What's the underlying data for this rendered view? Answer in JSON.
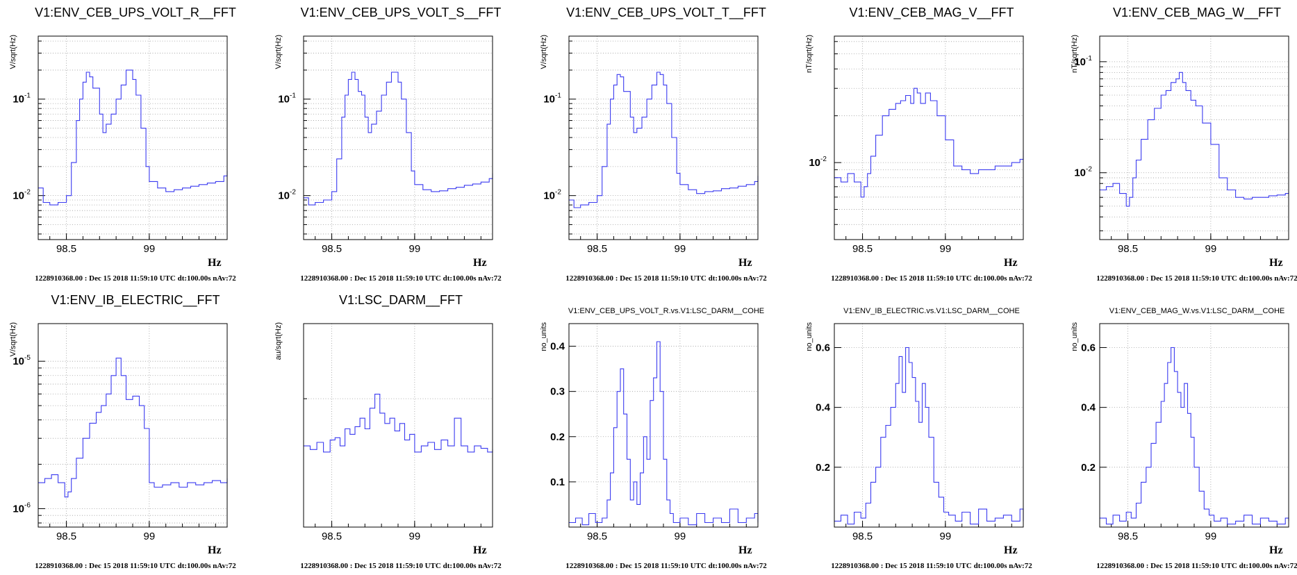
{
  "footer_text": "1228910368.00 : Dec 15 2018 11:59:10 UTC dt:100.00s nAv:72",
  "x_unit": "Hz",
  "colors": {
    "trace": "#3a3af0",
    "grid": "#9a9a9a",
    "frame": "#000000"
  },
  "chart_data": [
    {
      "type": "line",
      "title": "V1:ENV_CEB_UPS_VOLT_R__FFT",
      "ylabel": "V/sqrt(Hz)",
      "xlim": [
        98.33,
        99.47
      ],
      "ylim": [
        0.0035,
        0.45
      ],
      "log_y": true,
      "x_ticks": [
        98.5,
        99
      ],
      "y_tick_labels": [
        {
          "v": 0.1,
          "t": "10",
          "e": "-1"
        },
        {
          "v": 0.01,
          "t": "10",
          "e": "-2"
        }
      ],
      "x": [
        98.33,
        98.36,
        98.4,
        98.45,
        98.5,
        98.53,
        98.56,
        98.58,
        98.6,
        98.62,
        98.64,
        98.66,
        98.68,
        98.7,
        98.72,
        98.74,
        98.77,
        98.8,
        98.83,
        98.86,
        98.88,
        98.9,
        98.92,
        98.95,
        98.98,
        99.0,
        99.05,
        99.1,
        99.15,
        99.2,
        99.25,
        99.3,
        99.35,
        99.4,
        99.45,
        99.47
      ],
      "y": [
        0.012,
        0.0085,
        0.008,
        0.0085,
        0.01,
        0.022,
        0.06,
        0.1,
        0.15,
        0.19,
        0.17,
        0.13,
        0.13,
        0.07,
        0.045,
        0.055,
        0.07,
        0.1,
        0.14,
        0.2,
        0.2,
        0.16,
        0.11,
        0.05,
        0.02,
        0.014,
        0.012,
        0.011,
        0.0115,
        0.012,
        0.0125,
        0.013,
        0.0135,
        0.014,
        0.016,
        0.018
      ]
    },
    {
      "type": "line",
      "title": "V1:ENV_CEB_UPS_VOLT_S__FFT",
      "ylabel": "V/sqrt(Hz)",
      "xlim": [
        98.33,
        99.47
      ],
      "ylim": [
        0.0035,
        0.45
      ],
      "log_y": true,
      "x_ticks": [
        98.5,
        99
      ],
      "y_tick_labels": [
        {
          "v": 0.1,
          "t": "10",
          "e": "-1"
        },
        {
          "v": 0.01,
          "t": "10",
          "e": "-2"
        }
      ],
      "x": [
        98.33,
        98.36,
        98.4,
        98.45,
        98.5,
        98.53,
        98.56,
        98.58,
        98.6,
        98.62,
        98.64,
        98.66,
        98.68,
        98.7,
        98.72,
        98.74,
        98.77,
        98.8,
        98.83,
        98.86,
        98.88,
        98.9,
        98.92,
        98.95,
        98.98,
        99.0,
        99.05,
        99.1,
        99.15,
        99.2,
        99.25,
        99.3,
        99.35,
        99.4,
        99.45,
        99.47
      ],
      "y": [
        0.0095,
        0.008,
        0.0085,
        0.009,
        0.011,
        0.024,
        0.065,
        0.11,
        0.16,
        0.19,
        0.16,
        0.12,
        0.11,
        0.065,
        0.045,
        0.055,
        0.075,
        0.11,
        0.15,
        0.19,
        0.19,
        0.15,
        0.1,
        0.045,
        0.018,
        0.013,
        0.0115,
        0.011,
        0.0112,
        0.0118,
        0.0122,
        0.0128,
        0.0132,
        0.0138,
        0.015,
        0.017
      ]
    },
    {
      "type": "line",
      "title": "V1:ENV_CEB_UPS_VOLT_T__FFT",
      "ylabel": "V/sqrt(Hz)",
      "xlim": [
        98.33,
        99.47
      ],
      "ylim": [
        0.0035,
        0.45
      ],
      "log_y": true,
      "x_ticks": [
        98.5,
        99
      ],
      "y_tick_labels": [
        {
          "v": 0.1,
          "t": "10",
          "e": "-1"
        },
        {
          "v": 0.01,
          "t": "10",
          "e": "-2"
        }
      ],
      "x": [
        98.33,
        98.36,
        98.4,
        98.45,
        98.5,
        98.53,
        98.56,
        98.58,
        98.6,
        98.62,
        98.64,
        98.66,
        98.68,
        98.7,
        98.72,
        98.74,
        98.77,
        98.8,
        98.83,
        98.86,
        98.88,
        98.9,
        98.92,
        98.95,
        98.98,
        99.0,
        99.05,
        99.1,
        99.15,
        99.2,
        99.25,
        99.3,
        99.35,
        99.4,
        99.45,
        99.47
      ],
      "y": [
        0.009,
        0.0075,
        0.008,
        0.0085,
        0.01,
        0.02,
        0.055,
        0.1,
        0.14,
        0.18,
        0.17,
        0.12,
        0.12,
        0.065,
        0.045,
        0.05,
        0.065,
        0.1,
        0.14,
        0.19,
        0.18,
        0.14,
        0.09,
        0.04,
        0.017,
        0.013,
        0.0115,
        0.0105,
        0.011,
        0.0112,
        0.0118,
        0.012,
        0.0125,
        0.013,
        0.014,
        0.016
      ]
    },
    {
      "type": "line",
      "title": "V1:ENV_CEB_MAG_V__FFT",
      "ylabel": "nT/sqrt(Hz)",
      "xlim": [
        98.33,
        99.47
      ],
      "ylim": [
        0.0032,
        0.065
      ],
      "log_y": true,
      "x_ticks": [
        98.5,
        99
      ],
      "y_tick_labels": [
        {
          "v": 0.01,
          "t": "10",
          "e": "-2"
        }
      ],
      "x": [
        98.33,
        98.37,
        98.41,
        98.45,
        98.49,
        98.51,
        98.53,
        98.55,
        98.58,
        98.62,
        98.66,
        98.7,
        98.73,
        98.76,
        98.79,
        98.81,
        98.83,
        98.85,
        98.88,
        98.91,
        98.95,
        99.0,
        99.05,
        99.1,
        99.15,
        99.2,
        99.25,
        99.3,
        99.35,
        99.4,
        99.45,
        99.47
      ],
      "y": [
        0.008,
        0.0075,
        0.0085,
        0.0075,
        0.006,
        0.007,
        0.0085,
        0.011,
        0.015,
        0.02,
        0.022,
        0.024,
        0.025,
        0.027,
        0.024,
        0.03,
        0.028,
        0.024,
        0.028,
        0.025,
        0.02,
        0.014,
        0.0095,
        0.009,
        0.0085,
        0.009,
        0.009,
        0.0095,
        0.0095,
        0.01,
        0.0105,
        0.012
      ]
    },
    {
      "type": "line",
      "title": "V1:ENV_CEB_MAG_W__FFT",
      "ylabel": "nT/sqrt(Hz)",
      "xlim": [
        98.33,
        99.47
      ],
      "ylim": [
        0.0025,
        0.17
      ],
      "log_y": true,
      "x_ticks": [
        98.5,
        99
      ],
      "y_tick_labels": [
        {
          "v": 0.1,
          "t": "10",
          "e": "-1"
        },
        {
          "v": 0.01,
          "t": "10",
          "e": "-2"
        }
      ],
      "x": [
        98.33,
        98.37,
        98.41,
        98.45,
        98.49,
        98.51,
        98.53,
        98.55,
        98.58,
        98.62,
        98.66,
        98.7,
        98.73,
        98.76,
        98.79,
        98.81,
        98.83,
        98.85,
        98.88,
        98.91,
        98.95,
        99.0,
        99.05,
        99.1,
        99.15,
        99.2,
        99.25,
        99.3,
        99.35,
        99.4,
        99.45,
        99.47
      ],
      "y": [
        0.007,
        0.0075,
        0.008,
        0.0065,
        0.005,
        0.006,
        0.009,
        0.013,
        0.02,
        0.03,
        0.038,
        0.05,
        0.055,
        0.065,
        0.07,
        0.08,
        0.065,
        0.055,
        0.045,
        0.04,
        0.028,
        0.018,
        0.009,
        0.007,
        0.006,
        0.0058,
        0.006,
        0.006,
        0.0062,
        0.0063,
        0.0065,
        0.0068
      ]
    },
    {
      "type": "line",
      "title": "V1:ENV_IB_ELECTRIC__FFT",
      "ylabel": "V/sqrt(Hz)",
      "xlim": [
        98.33,
        99.47
      ],
      "ylim": [
        7.5e-07,
        1.8e-05
      ],
      "log_y": true,
      "x_ticks": [
        98.5,
        99
      ],
      "y_tick_labels": [
        {
          "v": 1e-05,
          "t": "10",
          "e": "-5"
        },
        {
          "v": 1e-06,
          "t": "10",
          "e": "-6"
        }
      ],
      "x": [
        98.33,
        98.37,
        98.41,
        98.45,
        98.49,
        98.51,
        98.53,
        98.56,
        98.6,
        98.64,
        98.68,
        98.71,
        98.74,
        98.77,
        98.8,
        98.83,
        98.86,
        98.9,
        98.94,
        98.97,
        99.0,
        99.03,
        99.08,
        99.13,
        99.18,
        99.23,
        99.28,
        99.33,
        99.38,
        99.43,
        99.47
      ],
      "y": [
        1.5e-06,
        1.6e-06,
        1.7e-06,
        1.5e-06,
        1.2e-06,
        1.3e-06,
        1.6e-06,
        2.2e-06,
        3e-06,
        3.8e-06,
        4.5e-06,
        5e-06,
        6e-06,
        8e-06,
        1.05e-05,
        8e-06,
        5.5e-06,
        5.8e-06,
        5e-06,
        3.5e-06,
        1.5e-06,
        1.4e-06,
        1.45e-06,
        1.5e-06,
        1.4e-06,
        1.5e-06,
        1.45e-06,
        1.5e-06,
        1.55e-06,
        1.5e-06,
        1.6e-06
      ]
    },
    {
      "type": "line",
      "title": "V1:LSC_DARM__FFT",
      "ylabel": "au/sqrt(Hz)",
      "xlim": [
        98.33,
        99.47
      ],
      "ylim": [
        1.0,
        3.0
      ],
      "log_y": true,
      "x_ticks": [
        98.5,
        99
      ],
      "y_tick_labels": [],
      "x": [
        98.33,
        98.37,
        98.41,
        98.45,
        98.49,
        98.52,
        98.55,
        98.58,
        98.61,
        98.64,
        98.67,
        98.7,
        98.73,
        98.76,
        98.79,
        98.82,
        98.85,
        98.88,
        98.91,
        98.94,
        98.97,
        99.0,
        99.04,
        99.08,
        99.12,
        99.16,
        99.2,
        99.24,
        99.28,
        99.32,
        99.36,
        99.4,
        99.44,
        99.47
      ],
      "y": [
        1.55,
        1.52,
        1.58,
        1.5,
        1.6,
        1.62,
        1.55,
        1.7,
        1.65,
        1.72,
        1.8,
        1.7,
        1.9,
        2.05,
        1.85,
        1.75,
        1.8,
        1.68,
        1.75,
        1.6,
        1.65,
        1.5,
        1.55,
        1.58,
        1.52,
        1.6,
        1.55,
        1.8,
        1.55,
        1.5,
        1.55,
        1.53,
        1.5,
        1.52
      ]
    },
    {
      "type": "line",
      "title": "V1:ENV_CEB_UPS_VOLT_R.vs.V1:LSC_DARM__COHE",
      "ylabel": "no_units",
      "xlim": [
        98.33,
        99.47
      ],
      "ylim": [
        0.0,
        0.45
      ],
      "log_y": false,
      "x_ticks": [
        98.5,
        99
      ],
      "y_ticks": [
        0.1,
        0.2,
        0.3,
        0.4
      ],
      "y_tick_labels": [
        {
          "v": 0.1,
          "t": "0.1"
        },
        {
          "v": 0.2,
          "t": "0.2"
        },
        {
          "v": 0.3,
          "t": "0.3"
        },
        {
          "v": 0.4,
          "t": "0.4"
        }
      ],
      "x": [
        98.33,
        98.37,
        98.41,
        98.45,
        98.49,
        98.53,
        98.56,
        98.58,
        98.6,
        98.62,
        98.64,
        98.66,
        98.68,
        98.7,
        98.72,
        98.74,
        98.76,
        98.78,
        98.8,
        98.82,
        98.84,
        98.86,
        98.88,
        98.9,
        98.92,
        98.94,
        98.96,
        99.0,
        99.05,
        99.1,
        99.15,
        99.2,
        99.25,
        99.3,
        99.35,
        99.4,
        99.45,
        99.47
      ],
      "y": [
        0.01,
        0.02,
        0.005,
        0.03,
        0.01,
        0.02,
        0.06,
        0.12,
        0.22,
        0.3,
        0.35,
        0.25,
        0.15,
        0.06,
        0.1,
        0.05,
        0.12,
        0.2,
        0.15,
        0.28,
        0.33,
        0.41,
        0.3,
        0.15,
        0.06,
        0.03,
        0.01,
        0.02,
        0.005,
        0.03,
        0.01,
        0.02,
        0.01,
        0.04,
        0.01,
        0.02,
        0.03,
        0.01
      ]
    },
    {
      "type": "line",
      "title": "V1:ENV_IB_ELECTRIC.vs.V1:LSC_DARM__COHE",
      "ylabel": "no_units",
      "xlim": [
        98.33,
        99.47
      ],
      "ylim": [
        0.0,
        0.68
      ],
      "log_y": false,
      "x_ticks": [
        98.5,
        99
      ],
      "y_ticks": [
        0.2,
        0.4,
        0.6
      ],
      "y_tick_labels": [
        {
          "v": 0.2,
          "t": "0.2"
        },
        {
          "v": 0.4,
          "t": "0.4"
        },
        {
          "v": 0.6,
          "t": "0.6"
        }
      ],
      "x": [
        98.33,
        98.37,
        98.41,
        98.45,
        98.49,
        98.52,
        98.55,
        98.58,
        98.61,
        98.64,
        98.67,
        98.7,
        98.72,
        98.74,
        98.76,
        98.78,
        98.8,
        98.82,
        98.84,
        98.86,
        98.88,
        98.9,
        98.93,
        98.96,
        98.99,
        99.02,
        99.06,
        99.1,
        99.15,
        99.2,
        99.25,
        99.3,
        99.35,
        99.4,
        99.45,
        99.47
      ],
      "y": [
        0.02,
        0.04,
        0.01,
        0.05,
        0.03,
        0.08,
        0.15,
        0.2,
        0.3,
        0.34,
        0.4,
        0.48,
        0.57,
        0.45,
        0.6,
        0.55,
        0.5,
        0.42,
        0.35,
        0.48,
        0.4,
        0.3,
        0.15,
        0.1,
        0.05,
        0.04,
        0.02,
        0.05,
        0.01,
        0.06,
        0.02,
        0.03,
        0.04,
        0.02,
        0.06,
        0.02
      ]
    },
    {
      "type": "line",
      "title": "V1:ENV_CEB_MAG_W.vs.V1:LSC_DARM__COHE",
      "ylabel": "no_units",
      "xlim": [
        98.33,
        99.47
      ],
      "ylim": [
        0.0,
        0.68
      ],
      "log_y": false,
      "x_ticks": [
        98.5,
        99
      ],
      "y_ticks": [
        0.2,
        0.4,
        0.6
      ],
      "y_tick_labels": [
        {
          "v": 0.2,
          "t": "0.2"
        },
        {
          "v": 0.4,
          "t": "0.4"
        },
        {
          "v": 0.6,
          "t": "0.6"
        }
      ],
      "x": [
        98.33,
        98.37,
        98.41,
        98.45,
        98.49,
        98.52,
        98.55,
        98.58,
        98.61,
        98.64,
        98.67,
        98.7,
        98.72,
        98.74,
        98.76,
        98.78,
        98.8,
        98.82,
        98.84,
        98.86,
        98.88,
        98.9,
        98.93,
        98.96,
        98.99,
        99.02,
        99.06,
        99.1,
        99.15,
        99.2,
        99.25,
        99.3,
        99.35,
        99.4,
        99.45,
        99.47
      ],
      "y": [
        0.03,
        0.01,
        0.04,
        0.02,
        0.05,
        0.03,
        0.08,
        0.15,
        0.2,
        0.28,
        0.35,
        0.42,
        0.48,
        0.55,
        0.6,
        0.52,
        0.45,
        0.4,
        0.48,
        0.38,
        0.3,
        0.2,
        0.12,
        0.06,
        0.04,
        0.02,
        0.03,
        0.01,
        0.02,
        0.04,
        0.01,
        0.03,
        0.02,
        0.01,
        0.03,
        0.02
      ]
    }
  ]
}
